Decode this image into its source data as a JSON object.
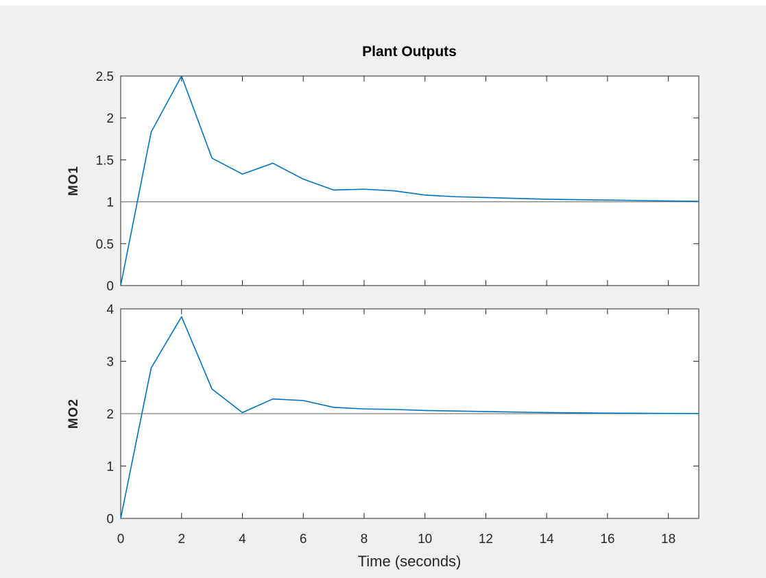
{
  "chart_data": {
    "type": "line",
    "title": "Plant Outputs",
    "xlabel": "Time (seconds)",
    "xlim": [
      0,
      19
    ],
    "xticks": [
      0,
      2,
      4,
      6,
      8,
      10,
      12,
      14,
      16,
      18
    ],
    "line_color": "#0072bd",
    "reference_color": "#7f7f7f",
    "subplots": [
      {
        "ylabel": "MO1",
        "ylim": [
          0,
          2.5
        ],
        "yticks": [
          0,
          0.5,
          1,
          1.5,
          2,
          2.5
        ],
        "reference": 1,
        "series": [
          {
            "x": [
              0,
              1,
              2,
              3,
              4,
              5,
              6,
              7,
              8,
              9,
              10,
              11,
              12,
              13,
              14,
              15,
              16,
              17,
              18,
              19
            ],
            "y": [
              0,
              1.83,
              2.5,
              1.52,
              1.33,
              1.46,
              1.27,
              1.14,
              1.15,
              1.13,
              1.08,
              1.06,
              1.05,
              1.04,
              1.03,
              1.025,
              1.02,
              1.015,
              1.01,
              1.005
            ]
          }
        ]
      },
      {
        "ylabel": "MO2",
        "ylim": [
          0,
          4
        ],
        "yticks": [
          0,
          1,
          2,
          3,
          4
        ],
        "reference": 2,
        "series": [
          {
            "x": [
              0,
              1,
              2,
              3,
              4,
              5,
              6,
              7,
              8,
              9,
              10,
              11,
              12,
              13,
              14,
              15,
              16,
              17,
              18,
              19
            ],
            "y": [
              0,
              2.87,
              3.85,
              2.47,
              2.02,
              2.28,
              2.25,
              2.12,
              2.09,
              2.08,
              2.06,
              2.05,
              2.04,
              2.03,
              2.02,
              2.015,
              2.01,
              2.008,
              2.005,
              2.003
            ]
          }
        ]
      }
    ]
  }
}
